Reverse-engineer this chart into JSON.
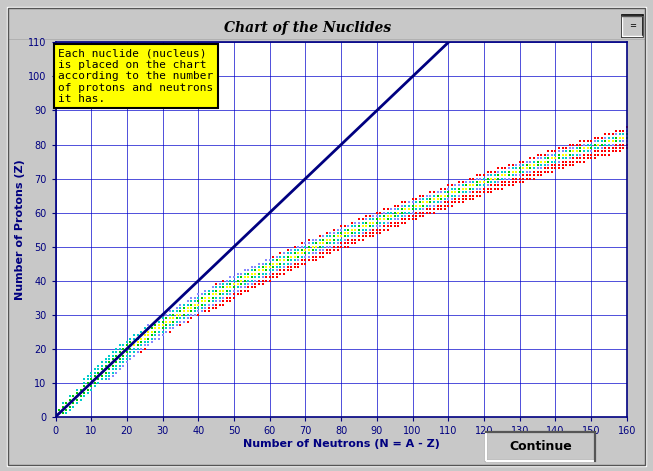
{
  "title": "Chart of the Nuclides",
  "xlabel": "Number of Neutrons (N = A - Z)",
  "ylabel": "Number of Protons (Z)",
  "xlim": [
    0,
    160
  ],
  "ylim": [
    0,
    110
  ],
  "xticks": [
    0,
    10,
    20,
    30,
    40,
    50,
    60,
    70,
    80,
    90,
    100,
    110,
    120,
    130,
    140,
    150,
    160
  ],
  "yticks": [
    0,
    10,
    20,
    30,
    40,
    50,
    60,
    70,
    80,
    90,
    100,
    110
  ],
  "grid_color": "#0000cc",
  "bg_color": "#ffffff",
  "outer_bg": "#c8c8c8",
  "color_red": "#ff0000",
  "color_yellow": "#ffff00",
  "color_green": "#00cc00",
  "color_cyan": "#00cccc",
  "color_blue": "#8888ff",
  "color_orange": "#ff8800",
  "color_magenta": "#ff00ff",
  "diagonal_line_color": "#000080",
  "annotation_text": "Each nuclide (nucleus)\nis placed on the chart\naccording to the number\nof protons and neutrons\nit has.",
  "annotation_bg": "#ffff00",
  "annotation_border": "#000000",
  "button_text": "Continue",
  "button_bg": "#c8c8c8",
  "title_fontsize": 10,
  "label_fontsize": 8,
  "tick_fontsize": 7,
  "ann_fontsize": 8
}
